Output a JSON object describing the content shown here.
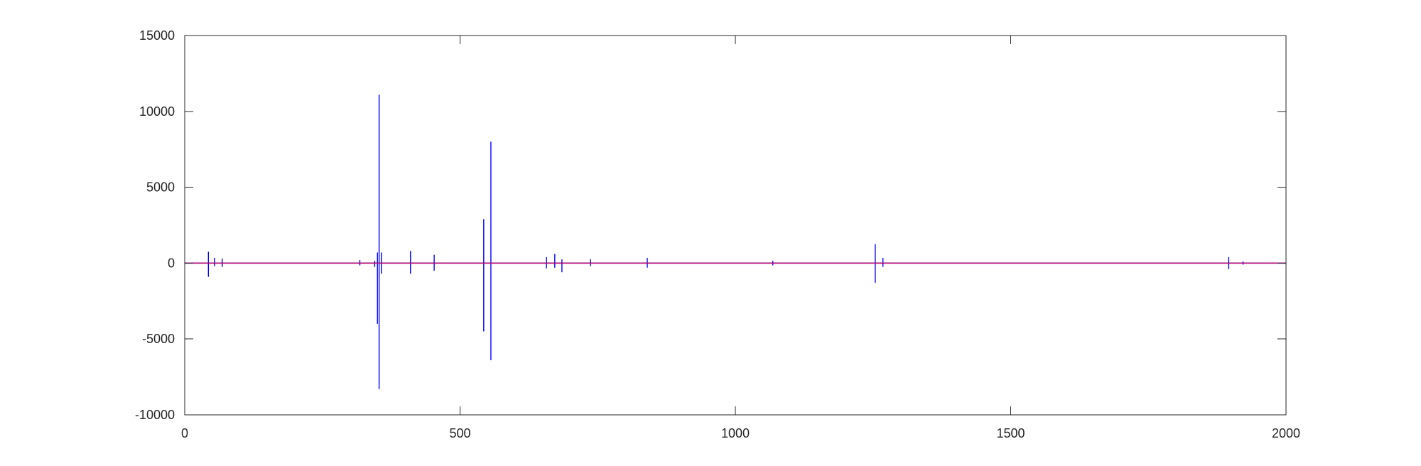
{
  "chart_data": {
    "type": "line",
    "title": "",
    "xlabel": "",
    "ylabel": "",
    "xlim": [
      0,
      2000
    ],
    "ylim": [
      -10000,
      15000
    ],
    "xticks": [
      0,
      500,
      1000,
      1500,
      2000
    ],
    "yticks": [
      -10000,
      -5000,
      0,
      5000,
      10000,
      15000
    ],
    "xtick_labels": [
      "0",
      "500",
      "1000",
      "1500",
      "2000"
    ],
    "ytick_labels": [
      "-10000",
      "-5000",
      "0",
      "5000",
      "10000",
      "15000"
    ],
    "grid": false,
    "legend": "none",
    "series": [
      {
        "color": "#0000ff",
        "style": "spiky signal around zero",
        "spikes": [
          {
            "x": 43,
            "max": 750,
            "min": -900
          },
          {
            "x": 54,
            "max": 350,
            "min": -200
          },
          {
            "x": 68,
            "max": 300,
            "min": -250
          },
          {
            "x": 318,
            "max": 200,
            "min": -150
          },
          {
            "x": 345,
            "max": 150,
            "min": -250
          },
          {
            "x": 350,
            "max": 700,
            "min": -4000
          },
          {
            "x": 353,
            "max": 11100,
            "min": -8300
          },
          {
            "x": 357,
            "max": 700,
            "min": -700
          },
          {
            "x": 410,
            "max": 800,
            "min": -700
          },
          {
            "x": 453,
            "max": 550,
            "min": -500
          },
          {
            "x": 543,
            "max": 2900,
            "min": -4500
          },
          {
            "x": 556,
            "max": 8000,
            "min": -6400
          },
          {
            "x": 657,
            "max": 400,
            "min": -350
          },
          {
            "x": 672,
            "max": 600,
            "min": -300
          },
          {
            "x": 685,
            "max": 250,
            "min": -600
          },
          {
            "x": 737,
            "max": 250,
            "min": -200
          },
          {
            "x": 840,
            "max": 350,
            "min": -300
          },
          {
            "x": 1068,
            "max": 150,
            "min": -150
          },
          {
            "x": 1254,
            "max": 1250,
            "min": -1300
          },
          {
            "x": 1268,
            "max": 350,
            "min": -250
          },
          {
            "x": 1896,
            "max": 400,
            "min": -400
          },
          {
            "x": 1922,
            "max": 100,
            "min": -100
          }
        ]
      },
      {
        "color": "#c00060",
        "style": "flat line at zero",
        "x": [
          0,
          2000
        ],
        "values": [
          0,
          0
        ]
      }
    ]
  }
}
